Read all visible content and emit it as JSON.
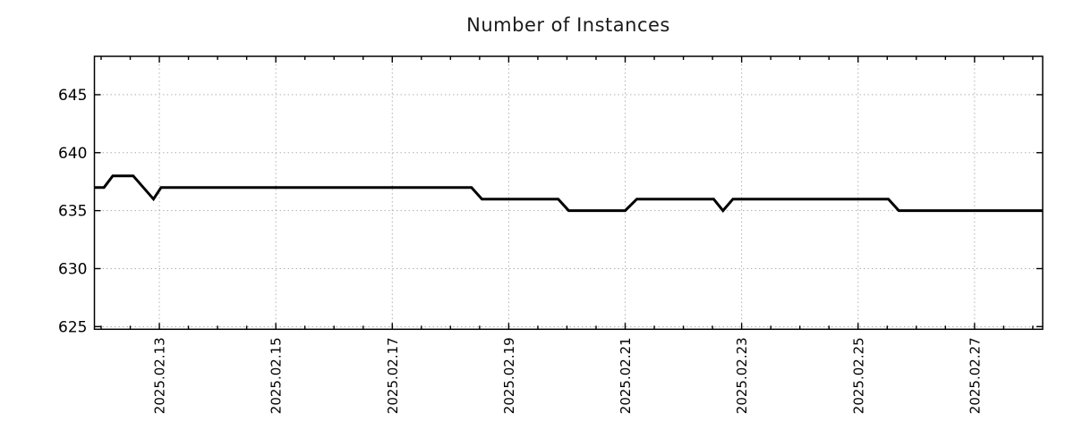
{
  "page": {
    "background": "#ffffff"
  },
  "chart_data": {
    "type": "line",
    "title": "Number of Instances",
    "legend": "none",
    "grid": true,
    "x_axis": {
      "tick_labels": [
        "2025.02.13",
        "2025.02.15",
        "2025.02.17",
        "2025.02.19",
        "2025.02.21",
        "2025.02.23",
        "2025.02.25",
        "2025.02.27"
      ],
      "tick_days": [
        13,
        15,
        17,
        19,
        21,
        23,
        25,
        27
      ],
      "minor_tick_interval_days": 0.5,
      "xlim_days": [
        11.885,
        28.17
      ],
      "label_rotation_deg": -90
    },
    "y_axis": {
      "tick_labels": [
        "625",
        "630",
        "635",
        "640",
        "645"
      ],
      "ticks": [
        625,
        630,
        635,
        640,
        645
      ],
      "ylim": [
        624.77,
        648.31
      ]
    },
    "series": [
      {
        "name": "instances",
        "color": "#000000",
        "points": [
          [
            11.89,
            637
          ],
          [
            12.05,
            637
          ],
          [
            12.2,
            638
          ],
          [
            12.55,
            638
          ],
          [
            12.9,
            636
          ],
          [
            13.03,
            637
          ],
          [
            18.36,
            637
          ],
          [
            18.54,
            636
          ],
          [
            19.85,
            636
          ],
          [
            20.03,
            635
          ],
          [
            21.0,
            635
          ],
          [
            21.2,
            636
          ],
          [
            22.52,
            636
          ],
          [
            22.68,
            635
          ],
          [
            22.85,
            636
          ],
          [
            25.52,
            636
          ],
          [
            25.7,
            635
          ],
          [
            28.17,
            635
          ]
        ]
      }
    ],
    "colors": {
      "line": "#000000",
      "grid": "#b0b0b0",
      "border": "#000000",
      "text": "#000000"
    }
  }
}
